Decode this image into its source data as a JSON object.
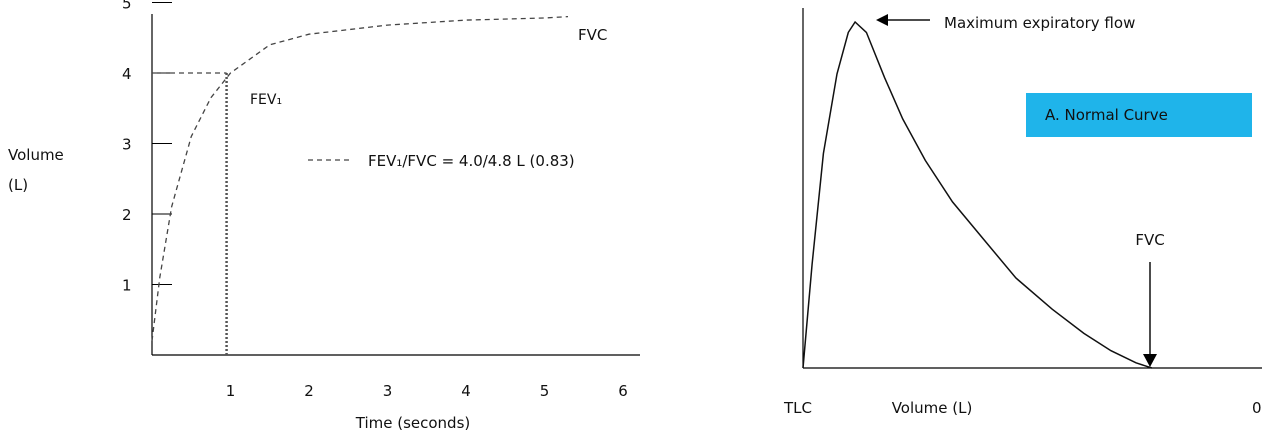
{
  "chart_data": [
    {
      "type": "line",
      "title": "",
      "xlabel": "Time (seconds)",
      "ylabel": [
        "Volume",
        "(L)"
      ],
      "xlim": [
        0,
        6
      ],
      "ylim": [
        0,
        5
      ],
      "x_ticks": [
        "1",
        "2",
        "3",
        "4",
        "5",
        "6"
      ],
      "y_ticks": [
        "1",
        "2",
        "3",
        "4",
        "5"
      ],
      "series": [
        {
          "name": "",
          "style": "dashed",
          "x": [
            0,
            0.1,
            0.25,
            0.5,
            0.75,
            1.0,
            1.5,
            2.0,
            3.0,
            4.0,
            5.0,
            5.3
          ],
          "y": [
            0.2,
            1.1,
            2.1,
            3.1,
            3.65,
            4.0,
            4.4,
            4.55,
            4.68,
            4.75,
            4.78,
            4.8
          ]
        }
      ],
      "reference_lines": [
        {
          "kind": "vertical",
          "x": 0.95,
          "from_y": 0,
          "to_y": 4.0,
          "style": "dotted"
        },
        {
          "kind": "horizontal",
          "y": 4.0,
          "from_x": 0,
          "to_x": 0.95,
          "style": "dashed"
        }
      ],
      "annotations": {
        "fvc": "FVC",
        "fev1": "FEV₁",
        "ratio": "FEV₁/FVC = 4.0/4.8 L (0.83)"
      },
      "legend": {
        "position": "center-right",
        "style": "dashed"
      }
    },
    {
      "type": "line",
      "title": "",
      "xlabel": "Volume (L)",
      "ylabel": "",
      "x_tick_labels": {
        "left": "TLC",
        "right": "0"
      },
      "series": [
        {
          "name": "",
          "style": "solid",
          "x": [
            0,
            0.02,
            0.045,
            0.075,
            0.1,
            0.115,
            0.14,
            0.18,
            0.22,
            0.27,
            0.33,
            0.4,
            0.47,
            0.55,
            0.62,
            0.68,
            0.735,
            0.77
          ],
          "y": [
            0,
            0.3,
            0.62,
            0.85,
            0.97,
            1.0,
            0.97,
            0.84,
            0.72,
            0.6,
            0.48,
            0.37,
            0.26,
            0.17,
            0.1,
            0.05,
            0.015,
            0
          ]
        }
      ],
      "annotations": {
        "peak": "Maximum expiratory flow",
        "fvc": "FVC",
        "box": "A.  Normal Curve",
        "box_color": "#1fb4ea"
      }
    }
  ]
}
